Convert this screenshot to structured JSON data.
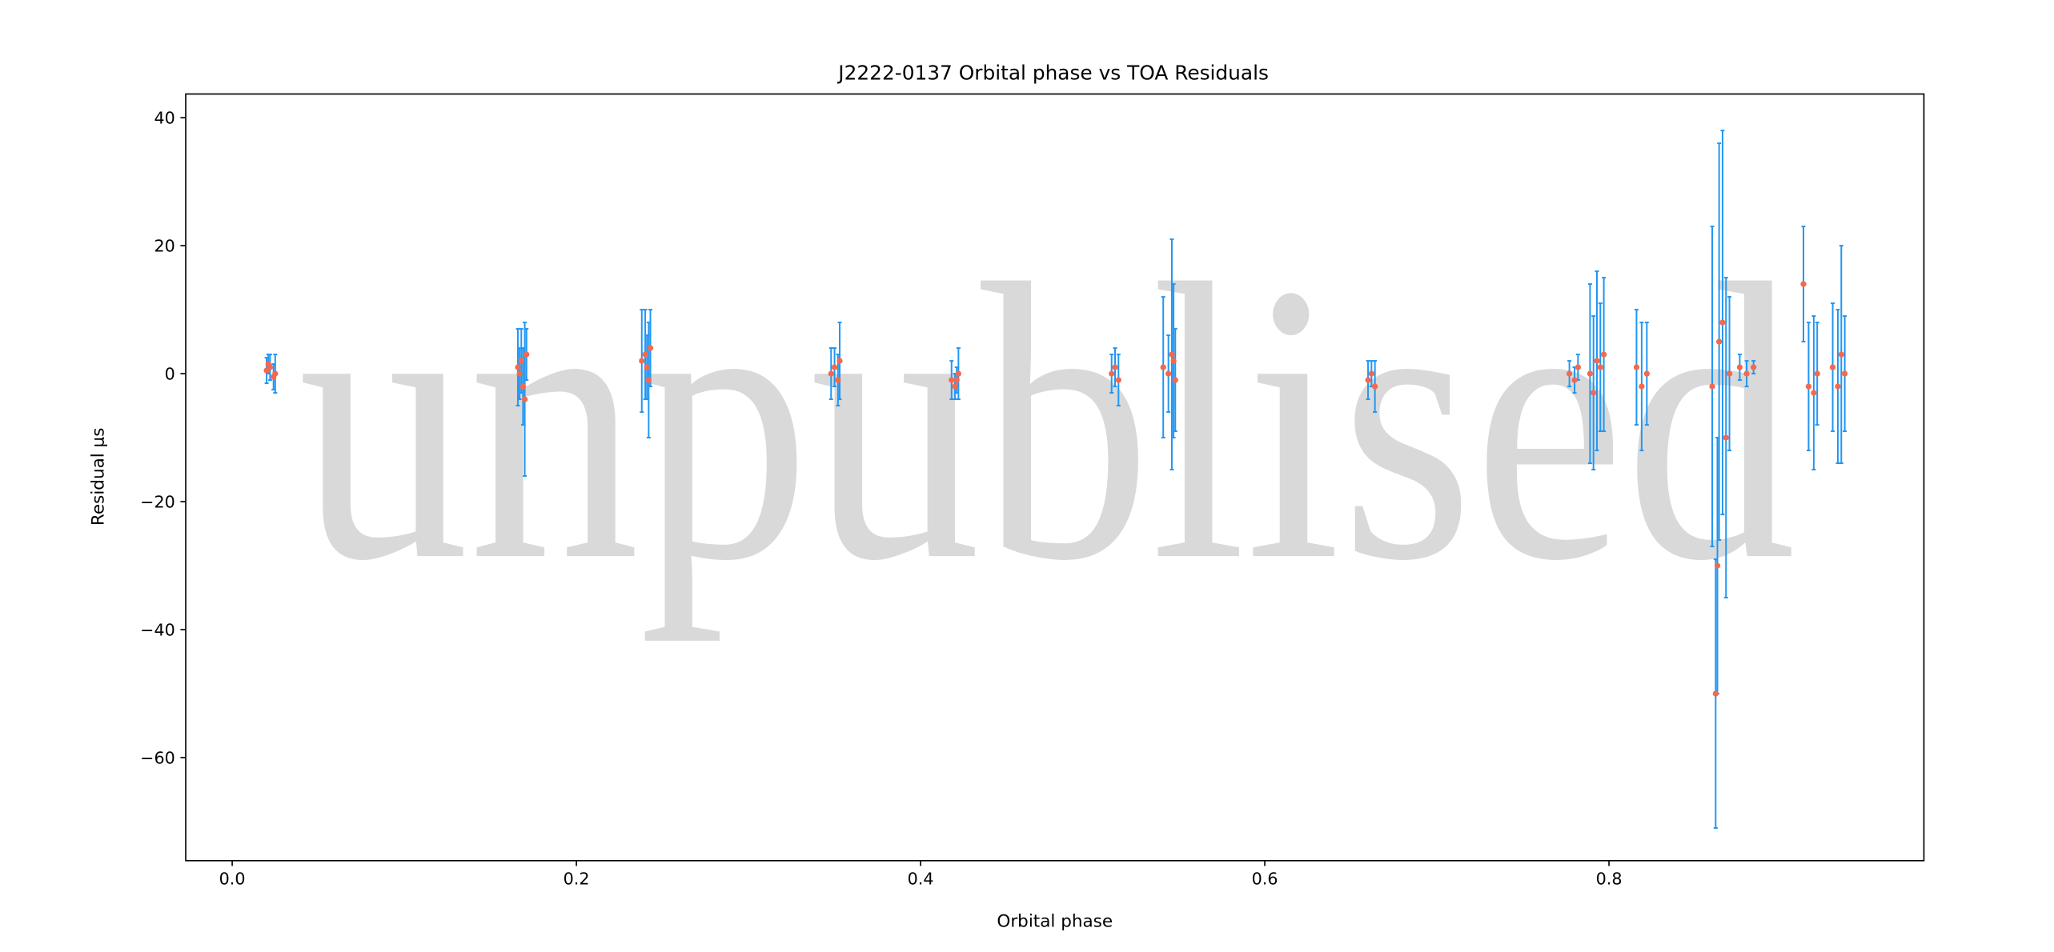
{
  "chart_data": {
    "type": "errorbar",
    "title": "J2222-0137 Orbital phase vs TOA Residuals",
    "xlabel": "Orbital phase",
    "ylabel": "Residual μs",
    "watermark": "unpublised",
    "marker_color": "#f4694e",
    "error_color": "#2196f3",
    "xlim": [
      -0.027,
      0.983
    ],
    "ylim": [
      -76.1,
      43.7
    ],
    "xticks": [
      {
        "value": 0,
        "label": "0.0"
      },
      0.2,
      0.4,
      0.6,
      0.8
    ],
    "yticks": [
      {
        "value": -60,
        "label": "−60"
      },
      {
        "value": -40,
        "label": "−40"
      },
      {
        "value": -20,
        "label": "−20"
      },
      0,
      20,
      40
    ],
    "x": [
      0.02,
      0.022,
      0.024,
      0.021,
      0.025,
      0.166,
      0.168,
      0.169,
      0.17,
      0.167,
      0.171,
      0.238,
      0.24,
      0.242,
      0.241,
      0.243,
      0.348,
      0.35,
      0.352,
      0.353,
      0.418,
      0.42,
      0.422,
      0.421,
      0.511,
      0.513,
      0.515,
      0.541,
      0.544,
      0.546,
      0.548,
      0.547,
      0.66,
      0.662,
      0.664,
      0.777,
      0.78,
      0.782,
      0.789,
      0.791,
      0.793,
      0.795,
      0.797,
      0.816,
      0.819,
      0.822,
      0.86,
      0.862,
      0.864,
      0.866,
      0.868,
      0.863,
      0.87,
      0.876,
      0.88,
      0.884,
      0.913,
      0.916,
      0.919,
      0.921,
      0.93,
      0.933,
      0.935,
      0.937
    ],
    "values": [
      0.5,
      1,
      -0.5,
      1.5,
      0,
      1,
      2,
      -2,
      -4,
      0,
      3,
      2,
      3,
      -1,
      1,
      4,
      0,
      1,
      -1,
      2,
      -1,
      -2,
      0,
      -1,
      0,
      1,
      -1,
      1,
      0,
      3,
      -1,
      2,
      -1,
      0,
      -2,
      0,
      -1,
      1,
      0,
      -3,
      2,
      1,
      3,
      1,
      -2,
      0,
      -2,
      -50,
      5,
      8,
      -10,
      -30,
      0,
      1,
      0,
      1,
      14,
      -2,
      -3,
      0,
      1,
      -2,
      3,
      0
    ],
    "errors": [
      2,
      2,
      2,
      1.5,
      3,
      6,
      5,
      6,
      12,
      4,
      4,
      8,
      7,
      9,
      5,
      6,
      4,
      3,
      4,
      6,
      3,
      2,
      4,
      2,
      3,
      3,
      4,
      11,
      6,
      18,
      8,
      12,
      3,
      2,
      4,
      2,
      2,
      2,
      14,
      12,
      14,
      10,
      12,
      9,
      10,
      8,
      25,
      21,
      31,
      30,
      25,
      20,
      12,
      2,
      2,
      1,
      9,
      10,
      12,
      8,
      10,
      12,
      17,
      9
    ]
  }
}
